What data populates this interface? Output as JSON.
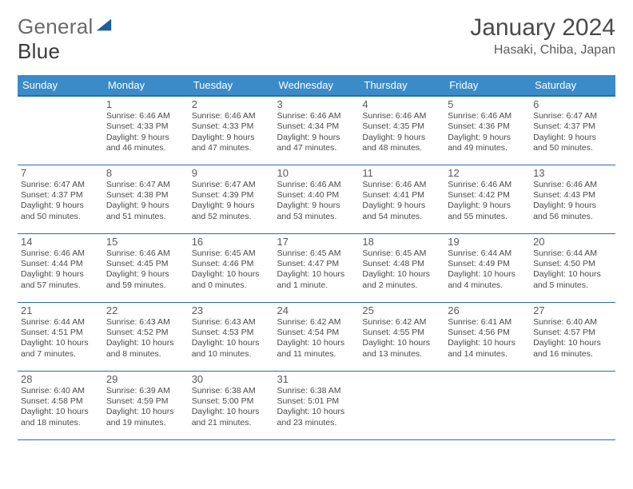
{
  "brand": {
    "word1": "General",
    "word2": "Blue"
  },
  "title": "January 2024",
  "location": "Hasaki, Chiba, Japan",
  "colors": {
    "header_bg": "#3b8bc8",
    "header_border": "#2a6da8",
    "row_border": "#2a6da8",
    "logo_tri": "#1f5f9e"
  },
  "day_headers": [
    "Sunday",
    "Monday",
    "Tuesday",
    "Wednesday",
    "Thursday",
    "Friday",
    "Saturday"
  ],
  "layout": {
    "first_weekday_offset": 1,
    "num_days": 31
  },
  "days": [
    {
      "n": "1",
      "sunrise": "Sunrise: 6:46 AM",
      "sunset": "Sunset: 4:33 PM",
      "daylight": "Daylight: 9 hours and 46 minutes."
    },
    {
      "n": "2",
      "sunrise": "Sunrise: 6:46 AM",
      "sunset": "Sunset: 4:33 PM",
      "daylight": "Daylight: 9 hours and 47 minutes."
    },
    {
      "n": "3",
      "sunrise": "Sunrise: 6:46 AM",
      "sunset": "Sunset: 4:34 PM",
      "daylight": "Daylight: 9 hours and 47 minutes."
    },
    {
      "n": "4",
      "sunrise": "Sunrise: 6:46 AM",
      "sunset": "Sunset: 4:35 PM",
      "daylight": "Daylight: 9 hours and 48 minutes."
    },
    {
      "n": "5",
      "sunrise": "Sunrise: 6:46 AM",
      "sunset": "Sunset: 4:36 PM",
      "daylight": "Daylight: 9 hours and 49 minutes."
    },
    {
      "n": "6",
      "sunrise": "Sunrise: 6:47 AM",
      "sunset": "Sunset: 4:37 PM",
      "daylight": "Daylight: 9 hours and 50 minutes."
    },
    {
      "n": "7",
      "sunrise": "Sunrise: 6:47 AM",
      "sunset": "Sunset: 4:37 PM",
      "daylight": "Daylight: 9 hours and 50 minutes."
    },
    {
      "n": "8",
      "sunrise": "Sunrise: 6:47 AM",
      "sunset": "Sunset: 4:38 PM",
      "daylight": "Daylight: 9 hours and 51 minutes."
    },
    {
      "n": "9",
      "sunrise": "Sunrise: 6:47 AM",
      "sunset": "Sunset: 4:39 PM",
      "daylight": "Daylight: 9 hours and 52 minutes."
    },
    {
      "n": "10",
      "sunrise": "Sunrise: 6:46 AM",
      "sunset": "Sunset: 4:40 PM",
      "daylight": "Daylight: 9 hours and 53 minutes."
    },
    {
      "n": "11",
      "sunrise": "Sunrise: 6:46 AM",
      "sunset": "Sunset: 4:41 PM",
      "daylight": "Daylight: 9 hours and 54 minutes."
    },
    {
      "n": "12",
      "sunrise": "Sunrise: 6:46 AM",
      "sunset": "Sunset: 4:42 PM",
      "daylight": "Daylight: 9 hours and 55 minutes."
    },
    {
      "n": "13",
      "sunrise": "Sunrise: 6:46 AM",
      "sunset": "Sunset: 4:43 PM",
      "daylight": "Daylight: 9 hours and 56 minutes."
    },
    {
      "n": "14",
      "sunrise": "Sunrise: 6:46 AM",
      "sunset": "Sunset: 4:44 PM",
      "daylight": "Daylight: 9 hours and 57 minutes."
    },
    {
      "n": "15",
      "sunrise": "Sunrise: 6:46 AM",
      "sunset": "Sunset: 4:45 PM",
      "daylight": "Daylight: 9 hours and 59 minutes."
    },
    {
      "n": "16",
      "sunrise": "Sunrise: 6:45 AM",
      "sunset": "Sunset: 4:46 PM",
      "daylight": "Daylight: 10 hours and 0 minutes."
    },
    {
      "n": "17",
      "sunrise": "Sunrise: 6:45 AM",
      "sunset": "Sunset: 4:47 PM",
      "daylight": "Daylight: 10 hours and 1 minute."
    },
    {
      "n": "18",
      "sunrise": "Sunrise: 6:45 AM",
      "sunset": "Sunset: 4:48 PM",
      "daylight": "Daylight: 10 hours and 2 minutes."
    },
    {
      "n": "19",
      "sunrise": "Sunrise: 6:44 AM",
      "sunset": "Sunset: 4:49 PM",
      "daylight": "Daylight: 10 hours and 4 minutes."
    },
    {
      "n": "20",
      "sunrise": "Sunrise: 6:44 AM",
      "sunset": "Sunset: 4:50 PM",
      "daylight": "Daylight: 10 hours and 5 minutes."
    },
    {
      "n": "21",
      "sunrise": "Sunrise: 6:44 AM",
      "sunset": "Sunset: 4:51 PM",
      "daylight": "Daylight: 10 hours and 7 minutes."
    },
    {
      "n": "22",
      "sunrise": "Sunrise: 6:43 AM",
      "sunset": "Sunset: 4:52 PM",
      "daylight": "Daylight: 10 hours and 8 minutes."
    },
    {
      "n": "23",
      "sunrise": "Sunrise: 6:43 AM",
      "sunset": "Sunset: 4:53 PM",
      "daylight": "Daylight: 10 hours and 10 minutes."
    },
    {
      "n": "24",
      "sunrise": "Sunrise: 6:42 AM",
      "sunset": "Sunset: 4:54 PM",
      "daylight": "Daylight: 10 hours and 11 minutes."
    },
    {
      "n": "25",
      "sunrise": "Sunrise: 6:42 AM",
      "sunset": "Sunset: 4:55 PM",
      "daylight": "Daylight: 10 hours and 13 minutes."
    },
    {
      "n": "26",
      "sunrise": "Sunrise: 6:41 AM",
      "sunset": "Sunset: 4:56 PM",
      "daylight": "Daylight: 10 hours and 14 minutes."
    },
    {
      "n": "27",
      "sunrise": "Sunrise: 6:40 AM",
      "sunset": "Sunset: 4:57 PM",
      "daylight": "Daylight: 10 hours and 16 minutes."
    },
    {
      "n": "28",
      "sunrise": "Sunrise: 6:40 AM",
      "sunset": "Sunset: 4:58 PM",
      "daylight": "Daylight: 10 hours and 18 minutes."
    },
    {
      "n": "29",
      "sunrise": "Sunrise: 6:39 AM",
      "sunset": "Sunset: 4:59 PM",
      "daylight": "Daylight: 10 hours and 19 minutes."
    },
    {
      "n": "30",
      "sunrise": "Sunrise: 6:38 AM",
      "sunset": "Sunset: 5:00 PM",
      "daylight": "Daylight: 10 hours and 21 minutes."
    },
    {
      "n": "31",
      "sunrise": "Sunrise: 6:38 AM",
      "sunset": "Sunset: 5:01 PM",
      "daylight": "Daylight: 10 hours and 23 minutes."
    }
  ]
}
